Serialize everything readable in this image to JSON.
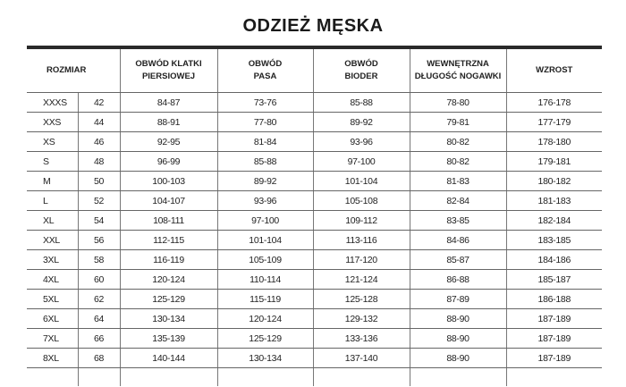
{
  "title": "ODZIEŻ MĘSKA",
  "headers": [
    "ROZMIAR",
    "OBWÓD KLATKI PIERSIOWEJ",
    "OBWÓD PASA",
    "OBWÓD BIODER",
    "WEWNĘTRZNA DŁUGOŚĆ NOGAWKI",
    "WZROST"
  ],
  "rows": [
    [
      "XXXS",
      "42",
      "84-87",
      "73-76",
      "85-88",
      "78-80",
      "176-178"
    ],
    [
      "XXS",
      "44",
      "88-91",
      "77-80",
      "89-92",
      "79-81",
      "177-179"
    ],
    [
      "XS",
      "46",
      "92-95",
      "81-84",
      "93-96",
      "80-82",
      "178-180"
    ],
    [
      "S",
      "48",
      "96-99",
      "85-88",
      "97-100",
      "80-82",
      "179-181"
    ],
    [
      "M",
      "50",
      "100-103",
      "89-92",
      "101-104",
      "81-83",
      "180-182"
    ],
    [
      "L",
      "52",
      "104-107",
      "93-96",
      "105-108",
      "82-84",
      "181-183"
    ],
    [
      "XL",
      "54",
      "108-111",
      "97-100",
      "109-112",
      "83-85",
      "182-184"
    ],
    [
      "XXL",
      "56",
      "112-115",
      "101-104",
      "113-116",
      "84-86",
      "183-185"
    ],
    [
      "3XL",
      "58",
      "116-119",
      "105-109",
      "117-120",
      "85-87",
      "184-186"
    ],
    [
      "4XL",
      "60",
      "120-124",
      "110-114",
      "121-124",
      "86-88",
      "185-187"
    ],
    [
      "5XL",
      "62",
      "125-129",
      "115-119",
      "125-128",
      "87-89",
      "186-188"
    ],
    [
      "6XL",
      "64",
      "130-134",
      "120-124",
      "129-132",
      "88-90",
      "187-189"
    ],
    [
      "7XL",
      "66",
      "135-139",
      "125-129",
      "133-136",
      "88-90",
      "187-189"
    ],
    [
      "8XL",
      "68",
      "140-144",
      "130-134",
      "137-140",
      "88-90",
      "187-189"
    ]
  ]
}
